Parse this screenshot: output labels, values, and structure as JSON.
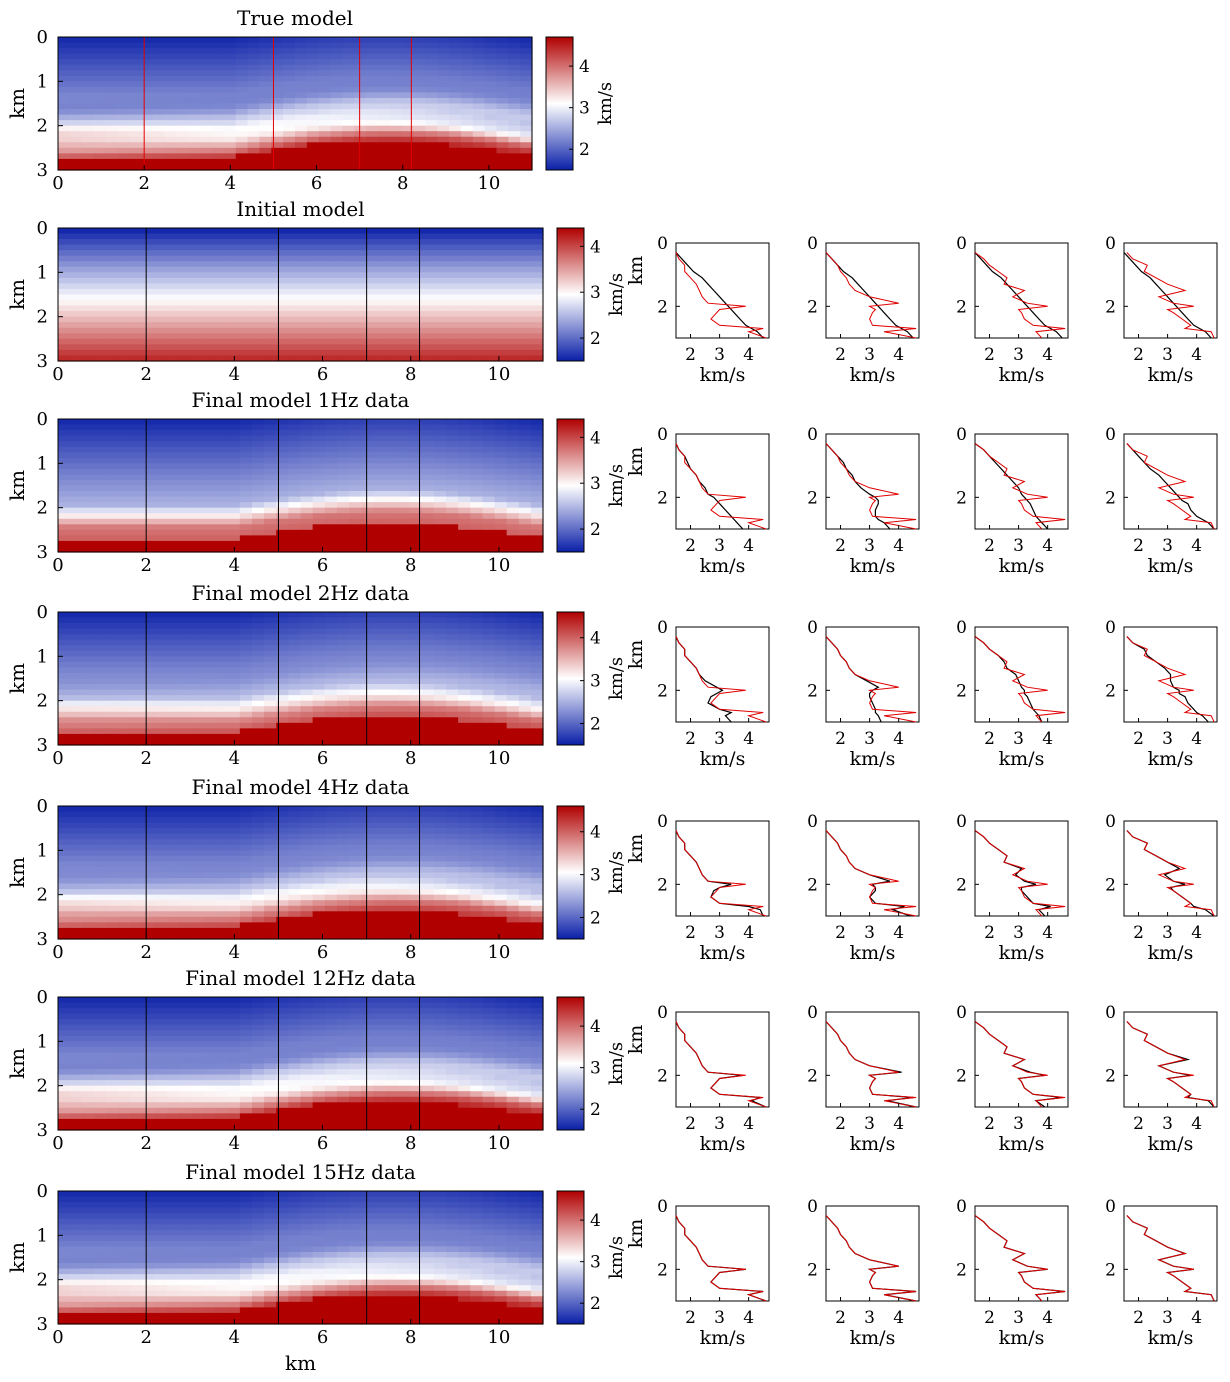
{
  "colors": {
    "blue": "#0a1fa8",
    "white": "#ffffff",
    "red": "#b00000",
    "true_trace": "#e00000",
    "model_trace": "#000000"
  },
  "chart_data": {
    "type": "heatmap",
    "layout_note": "none",
    "model_panels": [
      {
        "title": "True model",
        "xlabel": "",
        "ylabel": "km",
        "xlim": [
          0,
          11
        ],
        "ylim": [
          0,
          3
        ],
        "xticks": [
          "0",
          "2",
          "4",
          "6",
          "8",
          "10"
        ],
        "yticks": [
          "0",
          "1",
          "2",
          "3"
        ],
        "colorbar": {
          "label": "km/s",
          "ticks": [
            "2",
            "3",
            "4"
          ],
          "range": [
            1.5,
            4.7
          ]
        },
        "well_lines_km": [
          2,
          5,
          7,
          8.2
        ],
        "well_line_color": "red"
      },
      {
        "title": "Initial model",
        "xlabel": "",
        "ylabel": "km",
        "xlim": [
          0,
          11
        ],
        "ylim": [
          0,
          3
        ],
        "xticks": [
          "0",
          "2",
          "4",
          "6",
          "8",
          "10"
        ],
        "yticks": [
          "0",
          "1",
          "2",
          "3"
        ],
        "colorbar": {
          "label": "km/s",
          "ticks": [
            "2",
            "3",
            "4"
          ],
          "range": [
            1.5,
            4.4
          ]
        },
        "well_lines_km": [
          2,
          5,
          7,
          8.2
        ],
        "well_line_color": "black"
      },
      {
        "title": "Final model 1Hz data",
        "xlabel": "",
        "ylabel": "km",
        "xlim": [
          0,
          11
        ],
        "ylim": [
          0,
          3
        ],
        "xticks": [
          "0",
          "2",
          "4",
          "6",
          "8",
          "10"
        ],
        "yticks": [
          "0",
          "1",
          "2",
          "3"
        ],
        "colorbar": {
          "label": "km/s",
          "ticks": [
            "2",
            "3",
            "4"
          ],
          "range": [
            1.5,
            4.4
          ]
        },
        "well_lines_km": [
          2,
          5,
          7,
          8.2
        ],
        "well_line_color": "black"
      },
      {
        "title": "Final model 2Hz data",
        "xlabel": "",
        "ylabel": "km",
        "xlim": [
          0,
          11
        ],
        "ylim": [
          0,
          3
        ],
        "xticks": [
          "0",
          "2",
          "4",
          "6",
          "8",
          "10"
        ],
        "yticks": [
          "0",
          "1",
          "2",
          "3"
        ],
        "colorbar": {
          "label": "km/s",
          "ticks": [
            "2",
            "3",
            "4"
          ],
          "range": [
            1.5,
            4.6
          ]
        },
        "well_lines_km": [
          2,
          5,
          7,
          8.2
        ],
        "well_line_color": "black"
      },
      {
        "title": "Final model 4Hz data",
        "xlabel": "",
        "ylabel": "km",
        "xlim": [
          0,
          11
        ],
        "ylim": [
          0,
          3
        ],
        "xticks": [
          "0",
          "2",
          "4",
          "6",
          "8",
          "10"
        ],
        "yticks": [
          "0",
          "1",
          "2",
          "3"
        ],
        "colorbar": {
          "label": "km/s",
          "ticks": [
            "2",
            "3",
            "4"
          ],
          "range": [
            1.5,
            4.6
          ]
        },
        "well_lines_km": [
          2,
          5,
          7,
          8.2
        ],
        "well_line_color": "black"
      },
      {
        "title": "Final model 12Hz data",
        "xlabel": "",
        "ylabel": "km",
        "xlim": [
          0,
          11
        ],
        "ylim": [
          0,
          3
        ],
        "xticks": [
          "0",
          "2",
          "4",
          "6",
          "8",
          "10"
        ],
        "yticks": [
          "0",
          "1",
          "2",
          "3"
        ],
        "colorbar": {
          "label": "km/s",
          "ticks": [
            "2",
            "3",
            "4"
          ],
          "range": [
            1.5,
            4.7
          ]
        },
        "well_lines_km": [
          2,
          5,
          7,
          8.2
        ],
        "well_line_color": "black"
      },
      {
        "title": "Final model 15Hz data",
        "xlabel": "km",
        "ylabel": "km",
        "xlim": [
          0,
          11
        ],
        "ylim": [
          0,
          3
        ],
        "xticks": [
          "0",
          "2",
          "4",
          "6",
          "8",
          "10"
        ],
        "yticks": [
          "0",
          "1",
          "2",
          "3"
        ],
        "colorbar": {
          "label": "km/s",
          "ticks": [
            "2",
            "3",
            "4"
          ],
          "range": [
            1.5,
            4.7
          ]
        },
        "well_lines_km": [
          2,
          5,
          7,
          8.2
        ],
        "well_line_color": "black"
      }
    ],
    "trace_axes": {
      "xlabel": "km/s",
      "ylabel": "km",
      "yticks": [
        "0",
        "2"
      ],
      "ylim": [
        0,
        3
      ],
      "xticks_by_column": [
        [
          "2",
          "3",
          "4"
        ],
        [
          "2",
          "3",
          "4"
        ],
        [
          "2",
          "3",
          "4"
        ],
        [
          "2",
          "3",
          "4"
        ]
      ],
      "xlim_by_column": [
        [
          1.5,
          4.7
        ],
        [
          1.5,
          4.7
        ],
        [
          1.5,
          4.7
        ],
        [
          1.5,
          4.7
        ]
      ]
    },
    "trace_series": {
      "depth_km": [
        0.3,
        0.5,
        0.7,
        0.9,
        1.1,
        1.3,
        1.5,
        1.7,
        1.9,
        2.0,
        2.1,
        2.2,
        2.4,
        2.6,
        2.7,
        2.8,
        3.0
      ],
      "true_by_well": [
        [
          1.5,
          1.6,
          1.8,
          1.8,
          2.0,
          2.2,
          2.3,
          2.4,
          2.6,
          3.9,
          3.0,
          2.9,
          2.7,
          3.0,
          4.5,
          4.0,
          4.6
        ],
        [
          1.5,
          1.7,
          1.9,
          2.0,
          2.2,
          2.3,
          2.5,
          3.0,
          4.0,
          3.0,
          3.2,
          3.1,
          3.0,
          3.1,
          4.6,
          3.5,
          4.6
        ],
        [
          1.5,
          1.8,
          2.0,
          2.3,
          2.6,
          2.5,
          3.2,
          2.8,
          3.3,
          4.0,
          3.0,
          3.1,
          3.2,
          3.5,
          4.6,
          3.6,
          3.8
        ],
        [
          1.6,
          1.8,
          2.3,
          2.2,
          2.6,
          3.0,
          3.6,
          2.7,
          3.2,
          3.9,
          3.0,
          3.2,
          3.5,
          3.8,
          3.6,
          4.5,
          4.6
        ]
      ],
      "initial_trend": [
        1.5,
        1.7,
        1.9,
        2.1,
        2.4,
        2.6,
        2.8,
        3.0,
        3.2,
        3.3,
        3.4,
        3.5,
        3.7,
        3.9,
        4.1,
        4.3,
        4.5
      ],
      "recovered_by_panel": [
        [
          [
            1.5,
            1.7,
            1.9,
            2.1,
            2.4,
            2.6,
            2.8,
            3.0,
            3.2,
            3.3,
            3.4,
            3.5,
            3.7,
            3.9,
            4.1,
            4.3,
            4.5
          ],
          [
            1.5,
            1.7,
            1.9,
            2.1,
            2.4,
            2.6,
            2.8,
            3.0,
            3.2,
            3.3,
            3.4,
            3.5,
            3.7,
            3.9,
            4.1,
            4.3,
            4.5
          ],
          [
            1.5,
            1.7,
            1.9,
            2.1,
            2.4,
            2.6,
            2.8,
            3.0,
            3.2,
            3.3,
            3.4,
            3.5,
            3.7,
            3.9,
            4.1,
            4.3,
            4.5
          ],
          [
            1.5,
            1.7,
            1.9,
            2.1,
            2.4,
            2.6,
            2.8,
            3.0,
            3.2,
            3.3,
            3.4,
            3.5,
            3.7,
            3.9,
            4.1,
            4.3,
            4.5
          ]
        ],
        [
          [
            1.5,
            1.6,
            1.8,
            1.9,
            2.0,
            2.2,
            2.3,
            2.5,
            2.6,
            2.8,
            2.9,
            3.0,
            3.2,
            3.4,
            3.5,
            3.6,
            3.8
          ],
          [
            1.5,
            1.7,
            1.9,
            2.1,
            2.2,
            2.4,
            2.5,
            2.7,
            3.0,
            3.2,
            3.3,
            3.3,
            3.2,
            3.2,
            3.3,
            3.5,
            3.7
          ],
          [
            1.5,
            1.8,
            2.0,
            2.2,
            2.4,
            2.6,
            2.8,
            3.0,
            3.1,
            3.2,
            3.3,
            3.4,
            3.5,
            3.6,
            3.7,
            3.8,
            4.0
          ],
          [
            1.6,
            1.8,
            2.0,
            2.2,
            2.4,
            2.7,
            2.9,
            3.1,
            3.3,
            3.4,
            3.5,
            3.7,
            3.8,
            4.0,
            4.2,
            4.4,
            4.6
          ]
        ],
        [
          [
            1.5,
            1.6,
            1.8,
            1.8,
            2.0,
            2.2,
            2.3,
            2.5,
            2.9,
            3.1,
            2.9,
            2.7,
            2.6,
            3.0,
            3.4,
            3.2,
            3.4
          ],
          [
            1.5,
            1.7,
            1.9,
            2.0,
            2.2,
            2.3,
            2.5,
            2.9,
            3.3,
            3.1,
            3.0,
            3.0,
            3.1,
            3.2,
            3.2,
            3.3,
            3.4
          ],
          [
            1.5,
            1.8,
            2.0,
            2.3,
            2.5,
            2.6,
            2.9,
            3.0,
            3.1,
            3.2,
            3.2,
            3.3,
            3.4,
            3.5,
            3.6,
            3.7,
            3.8
          ],
          [
            1.6,
            1.8,
            2.2,
            2.3,
            2.6,
            2.9,
            3.1,
            3.1,
            3.2,
            3.4,
            3.4,
            3.6,
            3.7,
            3.9,
            4.0,
            4.2,
            4.4
          ]
        ],
        [
          [
            1.5,
            1.6,
            1.8,
            1.8,
            2.0,
            2.2,
            2.3,
            2.4,
            2.6,
            3.4,
            3.0,
            2.8,
            2.7,
            3.0,
            4.0,
            4.4,
            4.5
          ],
          [
            1.5,
            1.7,
            1.9,
            2.0,
            2.2,
            2.3,
            2.5,
            3.0,
            3.7,
            3.1,
            3.2,
            3.2,
            3.0,
            3.2,
            4.2,
            3.8,
            4.4
          ],
          [
            1.5,
            1.8,
            2.0,
            2.3,
            2.6,
            2.5,
            3.1,
            2.9,
            3.2,
            3.6,
            3.1,
            3.1,
            3.3,
            3.5,
            4.1,
            3.7,
            3.9
          ],
          [
            1.6,
            1.8,
            2.3,
            2.2,
            2.6,
            3.0,
            3.4,
            2.9,
            3.2,
            3.6,
            3.1,
            3.2,
            3.5,
            3.8,
            3.9,
            4.3,
            4.6
          ]
        ],
        [
          [
            1.5,
            1.6,
            1.8,
            1.8,
            2.0,
            2.2,
            2.3,
            2.4,
            2.6,
            3.8,
            3.0,
            2.9,
            2.7,
            3.0,
            4.4,
            4.1,
            4.6
          ],
          [
            1.5,
            1.7,
            1.9,
            2.0,
            2.2,
            2.3,
            2.5,
            3.0,
            4.1,
            3.0,
            3.2,
            3.1,
            3.0,
            3.1,
            4.5,
            3.6,
            4.6
          ],
          [
            1.5,
            1.8,
            2.0,
            2.3,
            2.6,
            2.5,
            3.2,
            2.8,
            3.4,
            3.9,
            3.0,
            3.1,
            3.2,
            3.5,
            4.5,
            3.6,
            3.9
          ],
          [
            1.6,
            1.8,
            2.3,
            2.2,
            2.6,
            3.0,
            3.7,
            2.7,
            3.2,
            3.8,
            3.0,
            3.2,
            3.5,
            3.8,
            3.7,
            4.4,
            4.6
          ]
        ],
        [
          [
            1.5,
            1.6,
            1.8,
            1.8,
            2.0,
            2.2,
            2.3,
            2.4,
            2.6,
            3.9,
            3.0,
            2.9,
            2.7,
            3.0,
            4.5,
            4.0,
            4.6
          ],
          [
            1.5,
            1.7,
            1.9,
            2.0,
            2.2,
            2.3,
            2.5,
            3.0,
            4.0,
            3.0,
            3.2,
            3.1,
            3.0,
            3.1,
            4.6,
            3.5,
            4.6
          ],
          [
            1.5,
            1.8,
            2.0,
            2.3,
            2.6,
            2.5,
            3.2,
            2.8,
            3.3,
            4.0,
            3.0,
            3.1,
            3.2,
            3.5,
            4.6,
            3.6,
            3.8
          ],
          [
            1.6,
            1.8,
            2.3,
            2.2,
            2.6,
            3.0,
            3.6,
            2.7,
            3.2,
            3.9,
            3.0,
            3.2,
            3.5,
            3.8,
            3.6,
            4.5,
            4.6
          ]
        ]
      ]
    }
  }
}
